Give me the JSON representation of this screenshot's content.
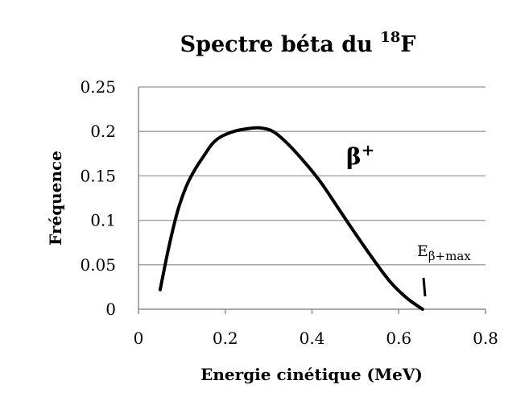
{
  "chart_data": {
    "type": "line",
    "title": "Spectre béta du ",
    "title_superscript": "18",
    "title_suffix": "F",
    "xlabel": "Energie cinétique (MeV)",
    "ylabel": "Fréquence",
    "xlim": [
      0,
      0.8
    ],
    "ylim": [
      0,
      0.25
    ],
    "x_ticks": [
      0,
      0.2,
      0.4,
      0.6,
      0.8
    ],
    "x_tick_labels": [
      "0",
      "0.2",
      "0.4",
      "0.6",
      "0.8"
    ],
    "y_ticks": [
      0,
      0.05,
      0.1,
      0.15,
      0.2,
      0.25
    ],
    "y_tick_labels": [
      "0",
      "0.05",
      "0.1",
      "0.15",
      "0.2",
      "0.25"
    ],
    "grid": "horizontal",
    "series": [
      {
        "color": "#000000",
        "x": [
          0.05,
          0.07,
          0.09,
          0.11,
          0.13,
          0.15,
          0.17,
          0.19,
          0.22,
          0.25,
          0.28,
          0.31,
          0.34,
          0.38,
          0.42,
          0.46,
          0.5,
          0.54,
          0.58,
          0.62,
          0.655
        ],
        "y": [
          0.022,
          0.07,
          0.11,
          0.138,
          0.157,
          0.172,
          0.186,
          0.194,
          0.2,
          0.203,
          0.204,
          0.2,
          0.188,
          0.167,
          0.143,
          0.114,
          0.085,
          0.057,
          0.031,
          0.012,
          0.0
        ]
      }
    ],
    "annotations": {
      "beta": "β",
      "beta_sup": "+",
      "emax_main": "E",
      "emax_sub": "β+max"
    }
  }
}
